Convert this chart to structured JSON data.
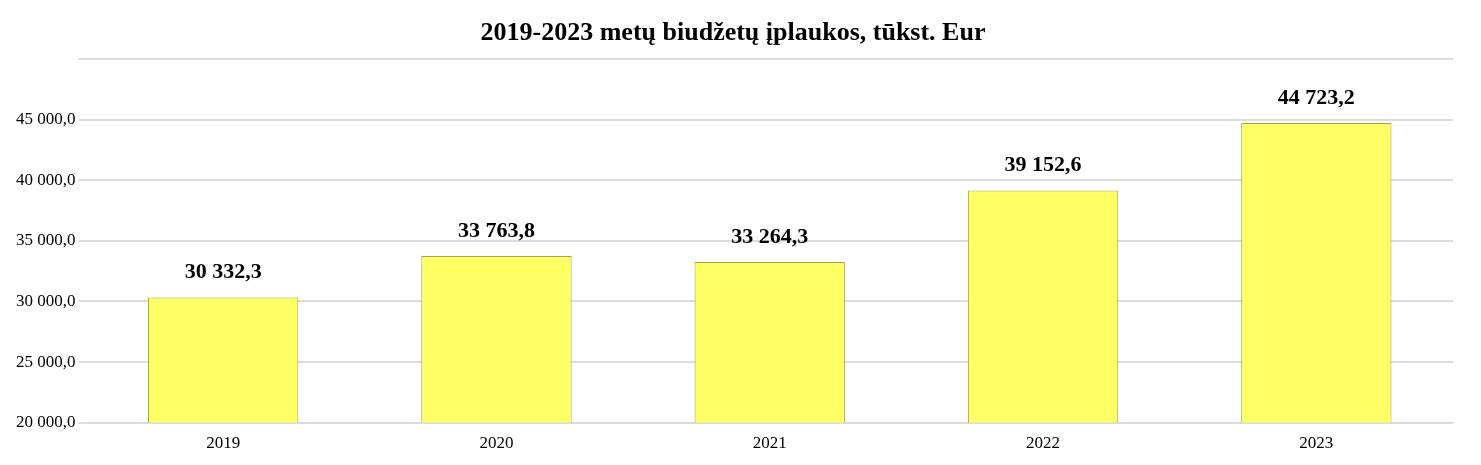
{
  "chart_data": {
    "type": "bar",
    "title": "2019-2023 metų biudžetų įplaukos, tūkst. Eur",
    "categories": [
      "2019",
      "2020",
      "2021",
      "2022",
      "2023"
    ],
    "values": [
      30332.3,
      33763.8,
      33264.3,
      39152.6,
      44723.2
    ],
    "value_labels": [
      "30 332,3",
      "33 763,8",
      "33 264,3",
      "39 152,6",
      "44 723,2"
    ],
    "color": "#ffff66",
    "ylim": [
      20000,
      50000
    ],
    "yticks": [
      {
        "value": 20000,
        "label": "20 000,0"
      },
      {
        "value": 25000,
        "label": "25 000,0"
      },
      {
        "value": 30000,
        "label": "30 000,0"
      },
      {
        "value": 35000,
        "label": "35 000,0"
      },
      {
        "value": 40000,
        "label": "40 000,0"
      },
      {
        "value": 45000,
        "label": "45 000,0"
      },
      {
        "value": 50000,
        "label": null
      }
    ],
    "grid": "y",
    "legend": false
  }
}
